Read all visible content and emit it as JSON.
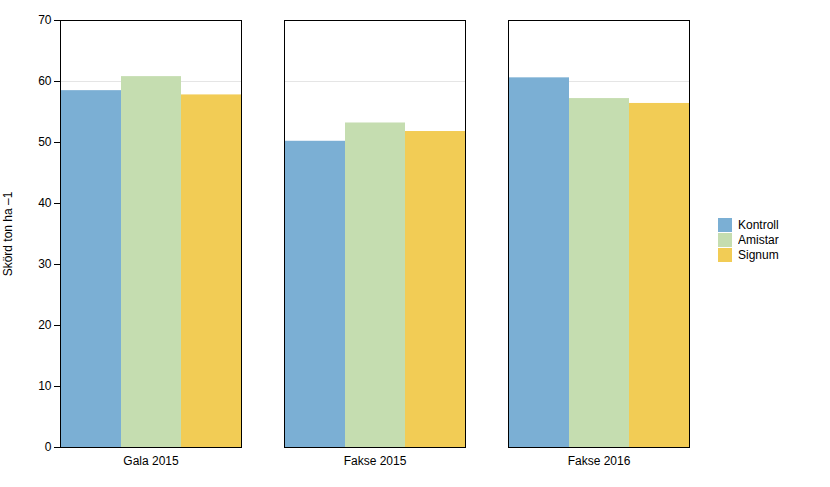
{
  "chart_data": {
    "type": "bar",
    "categories": [
      "Gala 2015",
      "Fakse 2015",
      "Fakse 2016"
    ],
    "series": [
      {
        "name": "Kontroll",
        "color": "#7bafd4",
        "values": [
          58.5,
          50.2,
          60.6
        ]
      },
      {
        "name": "Amistar",
        "color": "#c5ddb0",
        "values": [
          60.8,
          53.2,
          57.2
        ]
      },
      {
        "name": "Signum",
        "color": "#f2cc55",
        "values": [
          57.8,
          51.8,
          56.4
        ]
      }
    ],
    "ylabel": "Skörd ton ha –1",
    "ylim": [
      0,
      70
    ],
    "yticks": [
      0,
      10,
      20,
      30,
      40,
      50,
      60,
      70
    ],
    "grid": true,
    "legend": "right"
  }
}
